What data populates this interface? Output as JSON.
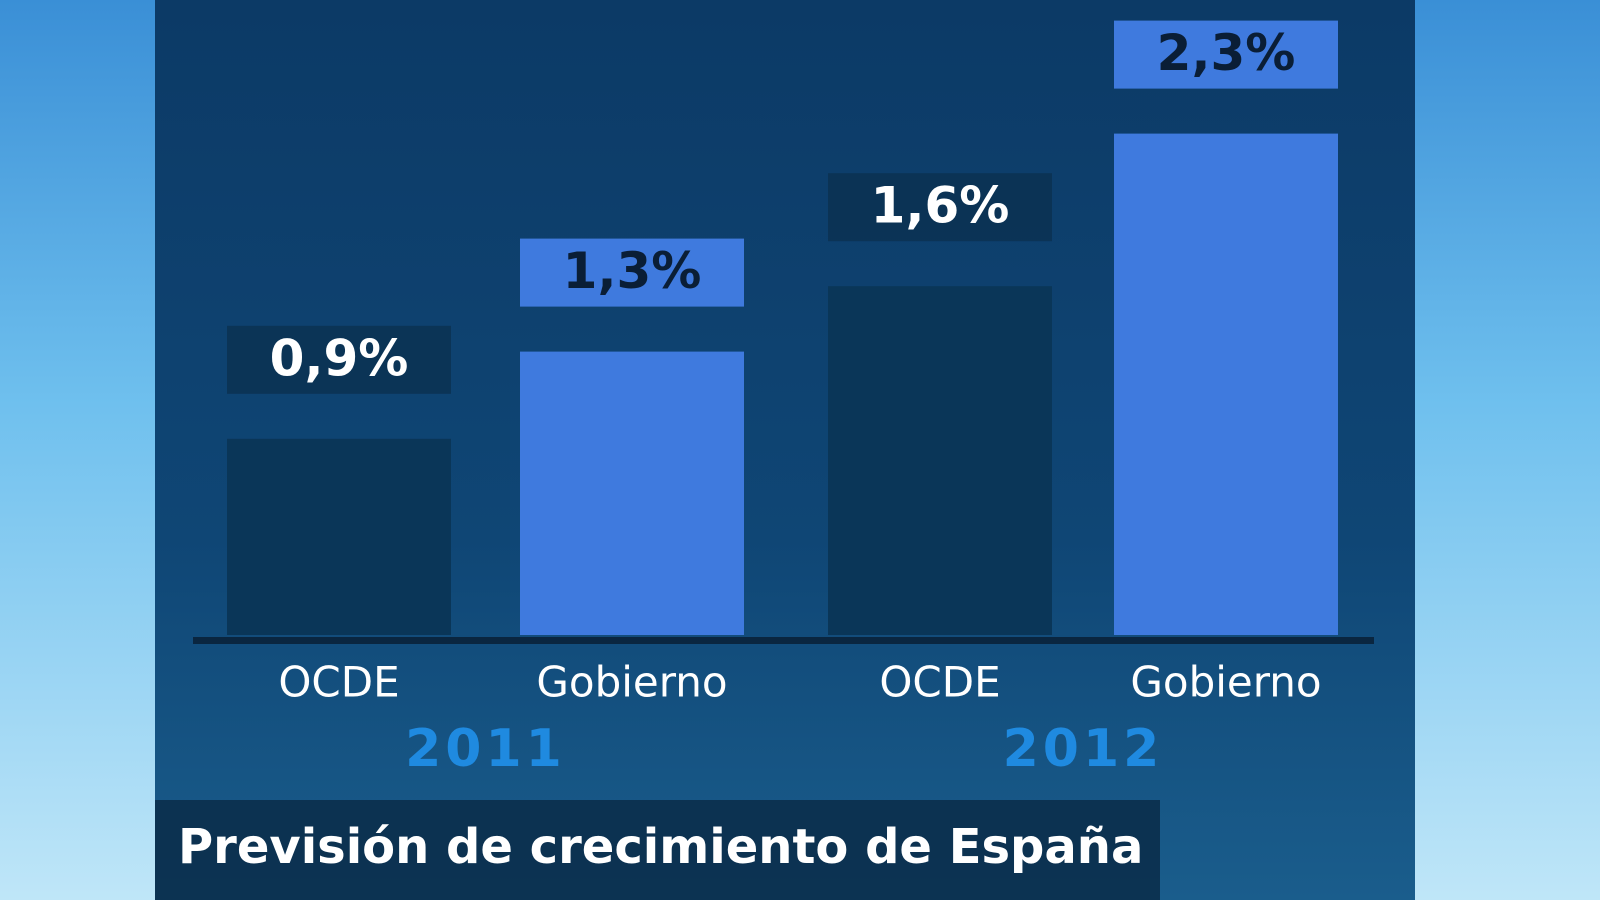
{
  "chart_data": {
    "type": "bar",
    "title": "Previsión de crecimiento de España",
    "groups": [
      {
        "label": "2011",
        "categories": [
          "OCDE",
          "Gobierno"
        ],
        "values": [
          0.9,
          1.3
        ],
        "value_labels": [
          "0,9%",
          "1,3%"
        ]
      },
      {
        "label": "2012",
        "categories": [
          "OCDE",
          "Gobierno"
        ],
        "values": [
          1.6,
          2.3
        ],
        "value_labels": [
          "1,6%",
          "2,3%"
        ]
      }
    ],
    "colors": [
      "#0a3658",
      "#3f7ade"
    ]
  }
}
